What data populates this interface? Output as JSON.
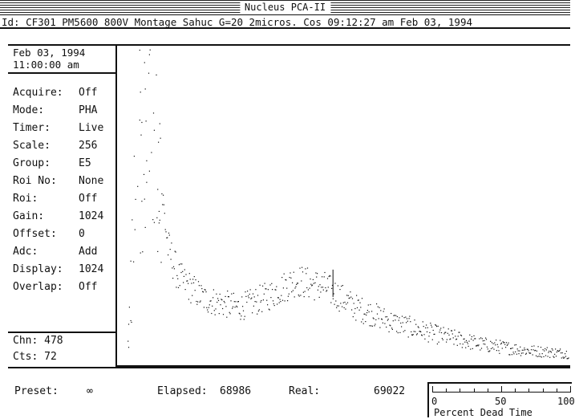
{
  "window": {
    "title": "Nucleus PCA-II"
  },
  "info_line": "Id: CF301 PM5600 800V Montage Sahuc G=20 2micros. Cos 09:12:27 am Feb 03, 1994",
  "panel": {
    "date": "Feb 03, 1994",
    "time": "11:00:00 am",
    "params": [
      {
        "key": "Acquire:",
        "value": "Off"
      },
      {
        "key": "Mode:",
        "value": "PHA"
      },
      {
        "key": "Timer:",
        "value": "Live"
      },
      {
        "key": "Scale:",
        "value": "256"
      },
      {
        "key": "Group:",
        "value": "E5"
      },
      {
        "key": "Roi No:",
        "value": "None"
      },
      {
        "key": "Roi:",
        "value": "Off"
      },
      {
        "key": "Gain:",
        "value": "1024"
      },
      {
        "key": "Offset:",
        "value": "0"
      },
      {
        "key": "Adc:",
        "value": "Add"
      },
      {
        "key": "Display:",
        "value": "1024"
      },
      {
        "key": "Overlap:",
        "value": "Off"
      }
    ],
    "cursor_channel": "Chn: 478",
    "cursor_counts": "Cts: 72"
  },
  "status": {
    "preset_label": "Preset:",
    "preset_value": "∞",
    "elapsed_label": "Elapsed:",
    "elapsed_value": "68986",
    "real_label": "Real:",
    "real_value": "69022"
  },
  "dead_time": {
    "caption": "Percent Dead Time",
    "scale_labels": [
      "0",
      "50",
      "100"
    ]
  },
  "colors": {
    "foreground": "#111111",
    "background": "#ffffff"
  },
  "chart_data": {
    "type": "scatter",
    "x_range": [
      0,
      1024
    ],
    "scale": 256,
    "cursor_channel": 478,
    "spectrum_envelope": [
      {
        "channel": 0,
        "counts": 0
      },
      {
        "channel": 30,
        "counts": 200
      },
      {
        "channel": 55,
        "counts": 225
      },
      {
        "channel": 75,
        "counts": 160
      },
      {
        "channel": 95,
        "counts": 95
      },
      {
        "channel": 120,
        "counts": 70
      },
      {
        "channel": 180,
        "counts": 52
      },
      {
        "channel": 260,
        "counts": 45
      },
      {
        "channel": 330,
        "counts": 55
      },
      {
        "channel": 390,
        "counts": 68
      },
      {
        "channel": 460,
        "counts": 62
      },
      {
        "channel": 530,
        "counts": 45
      },
      {
        "channel": 620,
        "counts": 32
      },
      {
        "channel": 720,
        "counts": 22
      },
      {
        "channel": 820,
        "counts": 14
      },
      {
        "channel": 920,
        "counts": 9
      },
      {
        "channel": 1024,
        "counts": 6
      }
    ]
  }
}
